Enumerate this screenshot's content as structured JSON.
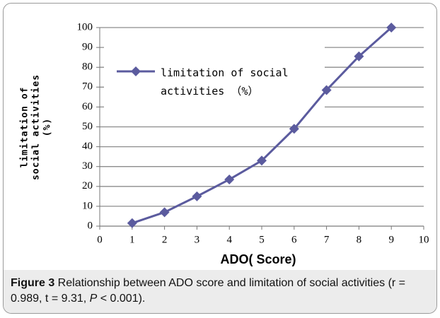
{
  "chart_data": {
    "type": "line",
    "x": [
      1,
      2,
      3,
      4,
      5,
      6,
      7,
      8,
      9
    ],
    "series": [
      {
        "name": "limitation of social activities （%）",
        "color": "#5b5b9e",
        "values": [
          1.5,
          7,
          15,
          23.5,
          33,
          49,
          68.5,
          85.5,
          100
        ]
      }
    ],
    "xlim": [
      0,
      10
    ],
    "xticks": [
      0,
      1,
      2,
      3,
      4,
      5,
      6,
      7,
      8,
      9,
      10
    ],
    "ylim": [
      0,
      100
    ],
    "yticks": [
      0,
      10,
      20,
      30,
      40,
      50,
      60,
      70,
      80,
      90,
      100
    ],
    "xlabel": "ADO( Score)",
    "ylabel_lines": [
      "limitation of",
      "social activities",
      "(%)"
    ],
    "grid": true,
    "legend": "upper left"
  },
  "caption": {
    "label": "Figure 3",
    "text_before": " Relationship between ADO score and limitation of social activities (r = 0.989, t = 9.31, ",
    "italic": "P",
    "text_after": " < 0.001)."
  }
}
